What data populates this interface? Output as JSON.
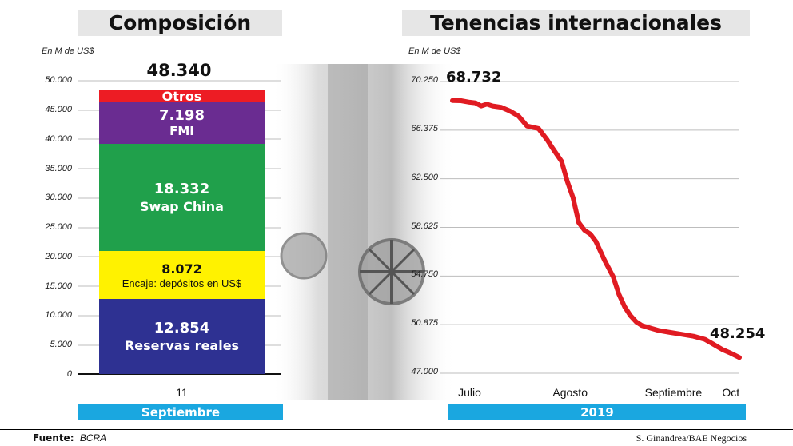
{
  "left": {
    "title": "Composición",
    "unit": "En M de US$",
    "total_label": "48.340",
    "x_tick": "11",
    "band_label": "Septiembre"
  },
  "right": {
    "title": "Tenencias internacionales",
    "unit": "En M de US$",
    "band_label": "2019"
  },
  "footer": {
    "source_label": "Fuente:",
    "source_value": "BCRA",
    "credit": "S. Ginandrea/BAE Negocios"
  },
  "colors": {
    "reservas": "#2e3192",
    "encaje": "#fff200",
    "swap": "#20a04b",
    "fmi": "#6a2c91",
    "otros": "#ed1c24",
    "line": "#e01b22",
    "band": "#1aa7e0"
  },
  "chart_data": [
    {
      "type": "bar",
      "stacked": true,
      "categories": [
        "11"
      ],
      "ylim": [
        0,
        50000
      ],
      "yticks": [
        0,
        5000,
        10000,
        15000,
        20000,
        25000,
        30000,
        35000,
        40000,
        45000,
        50000
      ],
      "ytick_labels": [
        "0",
        "5.000",
        "10.000",
        "15.000",
        "20.000",
        "25.000",
        "30.000",
        "35.000",
        "40.000",
        "45.000",
        "50.000"
      ],
      "total": 48340,
      "segments": [
        {
          "name": "Reservas reales",
          "value": 12854,
          "label": "12.854",
          "color_key": "reservas",
          "text_color": "#ffffff"
        },
        {
          "name": "Encaje: depósitos en US$",
          "value": 8072,
          "label": "8.072",
          "color_key": "encaje",
          "text_color": "#111111"
        },
        {
          "name": "Swap China",
          "value": 18332,
          "label": "18.332",
          "color_key": "swap",
          "text_color": "#ffffff"
        },
        {
          "name": "FMI",
          "value": 7198,
          "label": "7.198",
          "color_key": "fmi",
          "text_color": "#ffffff"
        },
        {
          "name": "Otros",
          "value": 1884,
          "label": "",
          "color_key": "otros",
          "text_color": "#ffffff"
        }
      ]
    },
    {
      "type": "line",
      "xlim": [
        0,
        100
      ],
      "ylim": [
        47000,
        70250
      ],
      "yticks": [
        47000,
        50875,
        54750,
        58625,
        62500,
        66375,
        70250
      ],
      "ytick_labels": [
        "47.000",
        "50.875",
        "54.750",
        "58.625",
        "62.500",
        "66.375",
        "70.250"
      ],
      "x_labels": [
        {
          "label": "Julio",
          "pos": 6
        },
        {
          "label": "Agosto",
          "pos": 41
        },
        {
          "label": "Septiembre",
          "pos": 77
        },
        {
          "label": "Oct",
          "pos": 97
        }
      ],
      "start_label": "68.732",
      "end_label": "48.254",
      "series": [
        {
          "x": [
            0,
            3,
            6,
            8,
            10,
            12,
            14,
            17,
            20,
            23,
            26,
            28,
            30,
            33,
            35,
            38,
            40,
            42,
            44,
            46,
            48,
            50,
            53,
            56,
            58,
            60,
            62,
            64,
            66,
            69,
            72,
            76,
            80,
            84,
            88,
            91,
            94,
            97,
            100
          ],
          "y": [
            68732,
            68720,
            68600,
            68550,
            68300,
            68450,
            68300,
            68200,
            67900,
            67500,
            66700,
            66600,
            66500,
            65600,
            64900,
            63900,
            62300,
            61000,
            59000,
            58400,
            58100,
            57500,
            56000,
            54700,
            53300,
            52300,
            51600,
            51100,
            50800,
            50600,
            50400,
            50250,
            50100,
            49950,
            49700,
            49300,
            48900,
            48600,
            48254
          ]
        }
      ]
    }
  ]
}
